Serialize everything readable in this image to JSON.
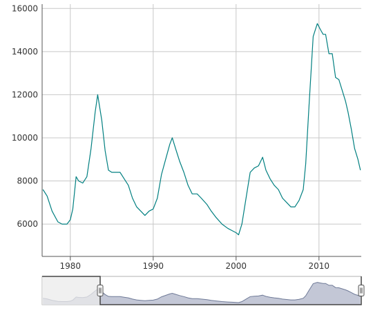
{
  "chart_data": {
    "type": "line",
    "title": "",
    "xlabel": "",
    "ylabel": "",
    "xlim": [
      1976.6,
      2015.1
    ],
    "ylim": [
      4500,
      16200
    ],
    "grid": true,
    "legend": "none",
    "x_ticks": [
      1980,
      1990,
      2000,
      2010
    ],
    "x_tick_labels": [
      "1980",
      "1990",
      "2000",
      "2010"
    ],
    "y_ticks": [
      6000,
      8000,
      10000,
      12000,
      14000,
      16000
    ],
    "y_tick_labels": [
      "6000",
      "8000",
      "10000",
      "12000",
      "14000",
      "16000"
    ],
    "series": [
      {
        "color": "#007f80",
        "x": [
          1976.7,
          1977.2,
          1977.8,
          1978.5,
          1979.0,
          1979.6,
          1980.0,
          1980.3,
          1980.7,
          1981.0,
          1981.5,
          1982.0,
          1982.5,
          1983.0,
          1983.3,
          1983.8,
          1984.2,
          1984.6,
          1985.0,
          1985.5,
          1986.0,
          1986.5,
          1987.0,
          1987.5,
          1988.0,
          1988.5,
          1989.0,
          1989.5,
          1990.0,
          1990.5,
          1991.0,
          1991.5,
          1992.0,
          1992.3,
          1992.7,
          1993.2,
          1993.7,
          1994.2,
          1994.7,
          1995.3,
          1995.8,
          1996.5,
          1997.0,
          1997.6,
          1998.3,
          1999.0,
          1999.5,
          2000.0,
          2000.3,
          2000.7,
          2001.2,
          2001.7,
          2002.2,
          2002.7,
          2003.2,
          2003.6,
          2004.1,
          2004.6,
          2005.1,
          2005.6,
          2006.1,
          2006.6,
          2007.1,
          2007.6,
          2008.1,
          2008.4,
          2008.8,
          2009.3,
          2009.8,
          2010.2,
          2010.5,
          2010.8,
          2011.2,
          2011.6,
          2012.0,
          2012.4,
          2012.8,
          2013.2,
          2013.5,
          2013.9,
          2014.3,
          2014.7,
          2015.0
        ],
        "y": [
          7600,
          7300,
          6600,
          6100,
          6000,
          6000,
          6200,
          6700,
          8200,
          8000,
          7900,
          8200,
          9500,
          11200,
          12000,
          10800,
          9400,
          8500,
          8400,
          8400,
          8400,
          8100,
          7800,
          7200,
          6800,
          6600,
          6400,
          6600,
          6700,
          7200,
          8300,
          9000,
          9700,
          10000,
          9500,
          8900,
          8400,
          7800,
          7400,
          7400,
          7200,
          6900,
          6600,
          6300,
          6000,
          5800,
          5700,
          5600,
          5500,
          6000,
          7200,
          8400,
          8600,
          8700,
          9100,
          8500,
          8100,
          7800,
          7600,
          7200,
          7000,
          6800,
          6800,
          7100,
          7600,
          8800,
          11500,
          14700,
          15300,
          15000,
          14800,
          14800,
          13900,
          13900,
          12800,
          12700,
          12200,
          11700,
          11200,
          10400,
          9500,
          9000,
          8500
        ]
      }
    ]
  },
  "navigator": {
    "left_handle_icon": "drag-handle-icon",
    "right_handle_icon": "drag-handle-icon",
    "selected_range": [
      1983.6,
      2015.1
    ],
    "full_range": [
      1976.6,
      2015.1
    ]
  }
}
